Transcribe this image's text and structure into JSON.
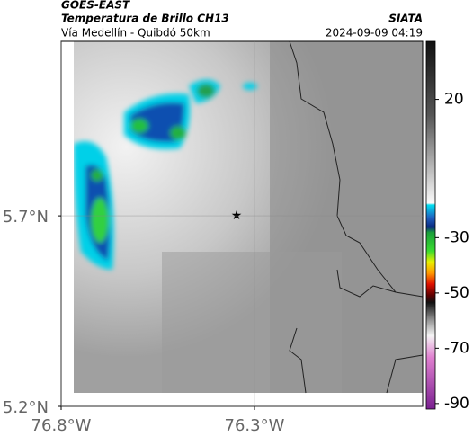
{
  "header": {
    "title": "GOES-EAST",
    "subtitle": "Temperatura de Brillo CH13",
    "region": "Vía Medellín - Quibdó 50km",
    "source": "SIATA",
    "timestamp": "2024-09-09 04:19"
  },
  "map": {
    "xlim": [
      -76.8,
      -75.865
    ],
    "ylim": [
      5.2,
      6.158
    ],
    "xticks": [
      {
        "value": -76.8,
        "label": "76.8°W"
      },
      {
        "value": -76.3,
        "label": "76.3°W"
      }
    ],
    "yticks": [
      {
        "value": 5.7,
        "label": "5.7°N"
      },
      {
        "value": 5.2,
        "label": "5.2°N"
      }
    ],
    "grid": true
  },
  "colorbar": {
    "lim": [
      -92,
      41
    ],
    "ticks": [
      20,
      -30,
      -50,
      -70,
      -90
    ]
  }
}
